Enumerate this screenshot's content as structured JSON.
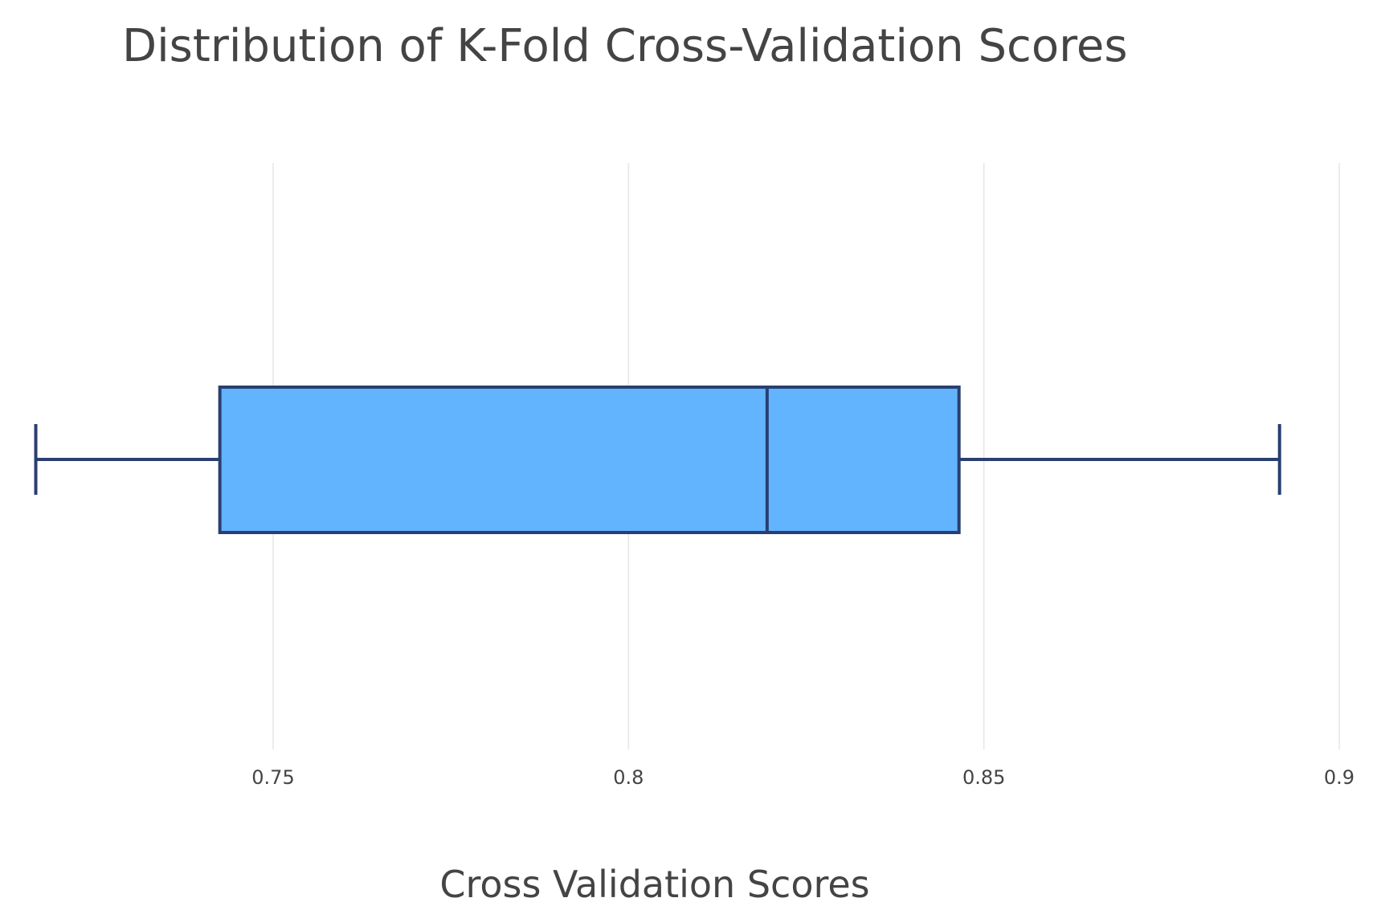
{
  "chart_data": {
    "type": "box",
    "title": "Distribution of K-Fold Cross-Validation Scores",
    "xlabel": "Cross Validation Scores",
    "ylabel": "",
    "orientation": "horizontal",
    "xlim": [
      0.715,
      0.9
    ],
    "ticks": [
      {
        "value": 0.75,
        "label": "0.75"
      },
      {
        "value": 0.8,
        "label": "0.8"
      },
      {
        "value": 0.85,
        "label": "0.85"
      },
      {
        "value": 0.9,
        "label": "0.9"
      }
    ],
    "grid": true,
    "box": {
      "min": 0.7166,
      "q1": 0.7425,
      "median": 0.8195,
      "q3": 0.8465,
      "max": 0.8916
    },
    "colors": {
      "fill": "#62b4ff",
      "line": "#2a3f6f",
      "grid": "#e6e6e6",
      "text": "#444444"
    }
  }
}
